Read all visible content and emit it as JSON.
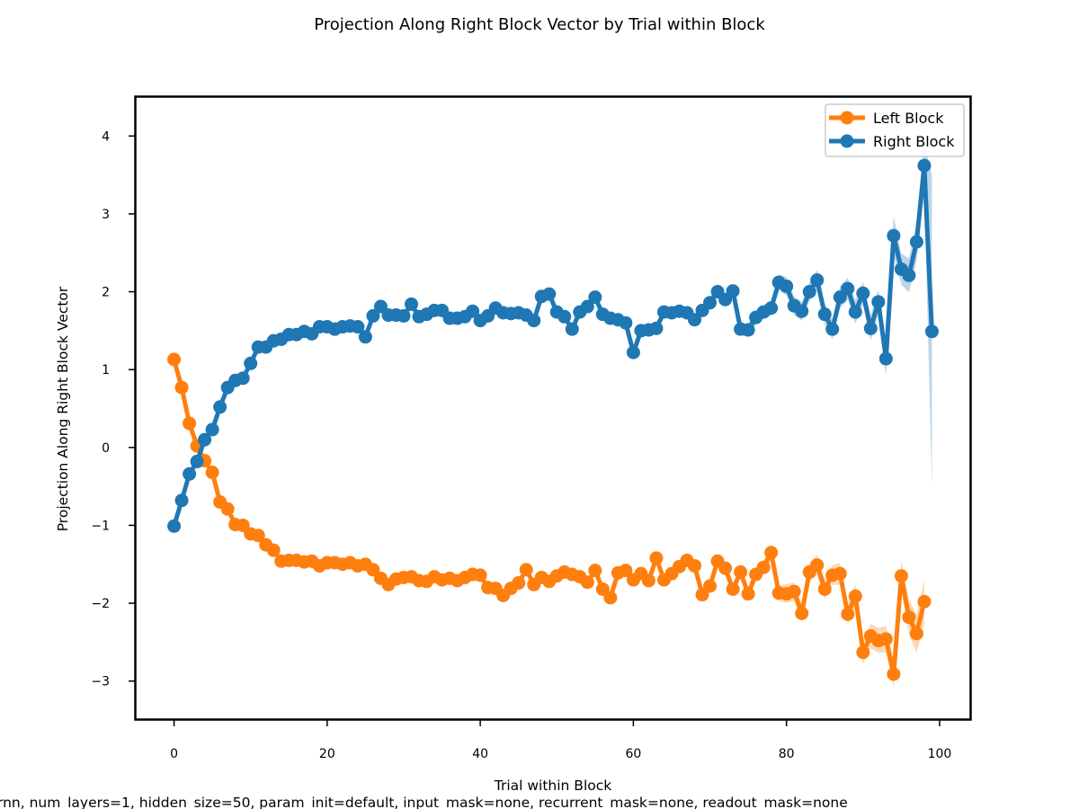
{
  "chart_data": {
    "type": "line",
    "title": "Projection Along Right Block Vector by Trial within Block",
    "xlabel": "Trial within Block",
    "ylabel": "Projection Along Right Block Vector",
    "caption": "rnn, num_layers=1, hidden_size=50, param_init=default, input_mask=none, recurrent_mask=none, readout_mask=none",
    "xlim": [
      -5,
      104
    ],
    "ylim": [
      -3.5,
      4.5
    ],
    "xticks": [
      0,
      20,
      40,
      60,
      80,
      100
    ],
    "xtick_labels": [
      "0",
      "20",
      "40",
      "60",
      "80",
      "100"
    ],
    "yticks": [
      -3,
      -2,
      -1,
      0,
      1,
      2,
      3,
      4
    ],
    "ytick_labels": [
      "−3",
      "−2",
      "−1",
      "0",
      "1",
      "2",
      "3",
      "4"
    ],
    "grid": false,
    "legend_position": "top-right",
    "series": [
      {
        "name": "Left Block",
        "color": "#ff7f0e",
        "x": [
          0,
          1,
          2,
          3,
          4,
          5,
          6,
          7,
          8,
          9,
          10,
          11,
          12,
          13,
          14,
          15,
          16,
          17,
          18,
          19,
          20,
          21,
          22,
          23,
          24,
          25,
          26,
          27,
          28,
          29,
          30,
          31,
          32,
          33,
          34,
          35,
          36,
          37,
          38,
          39,
          40,
          41,
          42,
          43,
          44,
          45,
          46,
          47,
          48,
          49,
          50,
          51,
          52,
          53,
          54,
          55,
          56,
          57,
          58,
          59,
          60,
          61,
          62,
          63,
          64,
          65,
          66,
          67,
          68,
          69,
          70,
          71,
          72,
          73,
          74,
          75,
          76,
          77,
          78,
          79,
          80,
          81,
          82,
          83,
          84,
          85,
          86,
          87,
          88,
          89,
          90,
          91,
          92,
          93,
          94,
          95,
          96,
          97,
          98
        ],
        "values": [
          1.13,
          0.77,
          0.31,
          0.02,
          -0.17,
          -0.32,
          -0.7,
          -0.79,
          -0.99,
          -1.0,
          -1.11,
          -1.13,
          -1.25,
          -1.32,
          -1.46,
          -1.45,
          -1.45,
          -1.47,
          -1.46,
          -1.52,
          -1.48,
          -1.48,
          -1.5,
          -1.48,
          -1.52,
          -1.5,
          -1.57,
          -1.68,
          -1.76,
          -1.69,
          -1.67,
          -1.66,
          -1.71,
          -1.72,
          -1.66,
          -1.7,
          -1.68,
          -1.71,
          -1.67,
          -1.63,
          -1.64,
          -1.8,
          -1.81,
          -1.9,
          -1.81,
          -1.74,
          -1.57,
          -1.76,
          -1.67,
          -1.72,
          -1.65,
          -1.6,
          -1.63,
          -1.66,
          -1.73,
          -1.58,
          -1.82,
          -1.93,
          -1.61,
          -1.58,
          -1.7,
          -1.62,
          -1.71,
          -1.42,
          -1.7,
          -1.62,
          -1.53,
          -1.45,
          -1.52,
          -1.89,
          -1.78,
          -1.46,
          -1.55,
          -1.82,
          -1.6,
          -1.88,
          -1.63,
          -1.54,
          -1.35,
          -1.87,
          -1.88,
          -1.85,
          -2.13,
          -1.6,
          -1.51,
          -1.82,
          -1.64,
          -1.62,
          -2.14,
          -1.91,
          -2.63,
          -2.42,
          -2.48,
          -2.46,
          -2.91,
          -1.65,
          -2.18,
          -2.39,
          -1.98
        ],
        "band_halfwidth": [
          0.02,
          0.02,
          0.02,
          0.02,
          0.02,
          0.02,
          0.02,
          0.02,
          0.02,
          0.02,
          0.02,
          0.02,
          0.02,
          0.02,
          0.02,
          0.02,
          0.02,
          0.02,
          0.02,
          0.02,
          0.02,
          0.02,
          0.02,
          0.02,
          0.02,
          0.02,
          0.03,
          0.03,
          0.03,
          0.03,
          0.03,
          0.03,
          0.03,
          0.03,
          0.03,
          0.03,
          0.03,
          0.03,
          0.03,
          0.03,
          0.03,
          0.04,
          0.04,
          0.04,
          0.04,
          0.04,
          0.04,
          0.04,
          0.04,
          0.04,
          0.04,
          0.04,
          0.04,
          0.04,
          0.05,
          0.05,
          0.05,
          0.05,
          0.05,
          0.05,
          0.05,
          0.05,
          0.05,
          0.05,
          0.06,
          0.06,
          0.06,
          0.06,
          0.06,
          0.07,
          0.07,
          0.07,
          0.07,
          0.08,
          0.08,
          0.08,
          0.09,
          0.09,
          0.1,
          0.1,
          0.12,
          0.12,
          0.12,
          0.12,
          0.13,
          0.13,
          0.13,
          0.14,
          0.14,
          0.15,
          0.15,
          0.16,
          0.16,
          0.17,
          0.18,
          0.2,
          0.22,
          0.25,
          0.28
        ]
      },
      {
        "name": "Right Block",
        "color": "#1f77b4",
        "x": [
          0,
          1,
          2,
          3,
          4,
          5,
          6,
          7,
          8,
          9,
          10,
          11,
          12,
          13,
          14,
          15,
          16,
          17,
          18,
          19,
          20,
          21,
          22,
          23,
          24,
          25,
          26,
          27,
          28,
          29,
          30,
          31,
          32,
          33,
          34,
          35,
          36,
          37,
          38,
          39,
          40,
          41,
          42,
          43,
          44,
          45,
          46,
          47,
          48,
          49,
          50,
          51,
          52,
          53,
          54,
          55,
          56,
          57,
          58,
          59,
          60,
          61,
          62,
          63,
          64,
          65,
          66,
          67,
          68,
          69,
          70,
          71,
          72,
          73,
          74,
          75,
          76,
          77,
          78,
          79,
          80,
          81,
          82,
          83,
          84,
          85,
          86,
          87,
          88,
          89,
          90,
          91,
          92,
          93,
          94,
          95,
          96,
          97,
          98,
          99
        ],
        "values": [
          -1.01,
          -0.68,
          -0.34,
          -0.18,
          0.1,
          0.23,
          0.52,
          0.77,
          0.86,
          0.89,
          1.08,
          1.29,
          1.29,
          1.37,
          1.39,
          1.45,
          1.45,
          1.49,
          1.46,
          1.55,
          1.55,
          1.52,
          1.55,
          1.56,
          1.55,
          1.42,
          1.69,
          1.81,
          1.7,
          1.7,
          1.69,
          1.84,
          1.68,
          1.71,
          1.76,
          1.76,
          1.66,
          1.66,
          1.68,
          1.75,
          1.63,
          1.69,
          1.79,
          1.73,
          1.72,
          1.73,
          1.7,
          1.63,
          1.94,
          1.97,
          1.74,
          1.68,
          1.52,
          1.74,
          1.81,
          1.93,
          1.71,
          1.66,
          1.64,
          1.6,
          1.22,
          1.5,
          1.51,
          1.53,
          1.74,
          1.73,
          1.75,
          1.73,
          1.64,
          1.76,
          1.86,
          2.0,
          1.9,
          2.01,
          1.52,
          1.51,
          1.67,
          1.74,
          1.79,
          2.12,
          2.07,
          1.82,
          1.75,
          2.0,
          2.15,
          1.71,
          1.52,
          1.93,
          2.04,
          1.74,
          1.98,
          1.53,
          1.87,
          1.14,
          2.72,
          2.29,
          2.21,
          2.64,
          3.62,
          1.49
        ],
        "band_halfwidth": [
          0.02,
          0.02,
          0.02,
          0.02,
          0.02,
          0.02,
          0.02,
          0.02,
          0.02,
          0.02,
          0.02,
          0.02,
          0.02,
          0.02,
          0.02,
          0.02,
          0.02,
          0.02,
          0.02,
          0.02,
          0.02,
          0.02,
          0.02,
          0.02,
          0.02,
          0.02,
          0.03,
          0.03,
          0.03,
          0.03,
          0.03,
          0.03,
          0.03,
          0.03,
          0.03,
          0.03,
          0.03,
          0.03,
          0.03,
          0.03,
          0.03,
          0.04,
          0.04,
          0.04,
          0.04,
          0.04,
          0.04,
          0.04,
          0.04,
          0.04,
          0.04,
          0.04,
          0.04,
          0.04,
          0.05,
          0.05,
          0.05,
          0.05,
          0.05,
          0.05,
          0.05,
          0.05,
          0.05,
          0.05,
          0.06,
          0.06,
          0.06,
          0.06,
          0.06,
          0.07,
          0.07,
          0.07,
          0.07,
          0.08,
          0.08,
          0.08,
          0.09,
          0.09,
          0.1,
          0.1,
          0.12,
          0.12,
          0.12,
          0.12,
          0.13,
          0.13,
          0.13,
          0.14,
          0.14,
          0.15,
          0.15,
          0.16,
          0.16,
          0.22,
          0.25,
          0.2,
          0.22,
          0.25,
          0.3,
          2.0
        ]
      }
    ]
  }
}
